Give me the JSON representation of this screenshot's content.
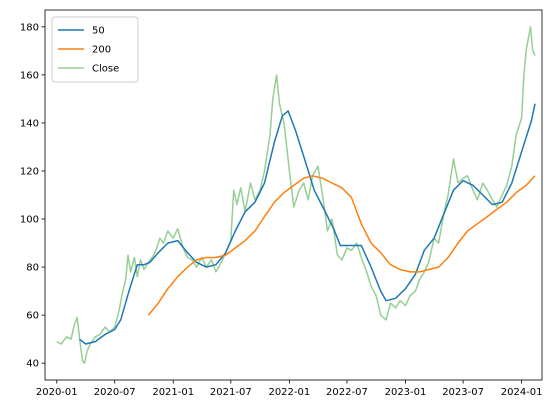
{
  "chart_data": {
    "type": "line",
    "xlim": [
      "2019-11-25",
      "2024-03-05"
    ],
    "ylim": [
      33,
      187
    ],
    "x_ticks": [
      {
        "date": "2020-01-01",
        "label": "2020-01"
      },
      {
        "date": "2020-07-01",
        "label": "2020-07"
      },
      {
        "date": "2021-01-01",
        "label": "2021-01"
      },
      {
        "date": "2021-07-01",
        "label": "2021-07"
      },
      {
        "date": "2022-01-01",
        "label": "2022-01"
      },
      {
        "date": "2022-07-01",
        "label": "2022-07"
      },
      {
        "date": "2023-01-01",
        "label": "2023-01"
      },
      {
        "date": "2023-07-01",
        "label": "2023-07"
      },
      {
        "date": "2024-01-01",
        "label": "2024-01"
      }
    ],
    "y_ticks": [
      40,
      60,
      80,
      100,
      120,
      140,
      160,
      180
    ],
    "legend": {
      "position": "top-left"
    },
    "grid": false,
    "series": [
      {
        "name": "Close",
        "color": "#2ca02c",
        "opacity": 0.5,
        "points": [
          [
            "2020-01-01",
            49
          ],
          [
            "2020-01-15",
            48
          ],
          [
            "2020-02-01",
            51
          ],
          [
            "2020-02-15",
            50
          ],
          [
            "2020-02-25",
            56
          ],
          [
            "2020-03-05",
            59
          ],
          [
            "2020-03-15",
            48
          ],
          [
            "2020-03-22",
            41
          ],
          [
            "2020-03-28",
            40
          ],
          [
            "2020-04-05",
            45
          ],
          [
            "2020-04-15",
            48
          ],
          [
            "2020-05-01",
            51
          ],
          [
            "2020-05-15",
            52
          ],
          [
            "2020-06-01",
            55
          ],
          [
            "2020-06-15",
            53
          ],
          [
            "2020-07-01",
            55
          ],
          [
            "2020-07-15",
            62
          ],
          [
            "2020-07-25",
            69
          ],
          [
            "2020-08-05",
            75
          ],
          [
            "2020-08-12",
            85
          ],
          [
            "2020-08-20",
            78
          ],
          [
            "2020-09-01",
            84
          ],
          [
            "2020-09-10",
            76
          ],
          [
            "2020-09-20",
            83
          ],
          [
            "2020-10-01",
            79
          ],
          [
            "2020-10-15",
            82
          ],
          [
            "2020-11-01",
            85
          ],
          [
            "2020-11-10",
            88
          ],
          [
            "2020-11-20",
            92
          ],
          [
            "2020-12-01",
            90
          ],
          [
            "2020-12-15",
            95
          ],
          [
            "2021-01-01",
            92
          ],
          [
            "2021-01-15",
            96
          ],
          [
            "2021-02-01",
            88
          ],
          [
            "2021-02-15",
            84
          ],
          [
            "2021-03-01",
            83
          ],
          [
            "2021-03-15",
            80
          ],
          [
            "2021-04-01",
            84
          ],
          [
            "2021-04-15",
            80
          ],
          [
            "2021-05-01",
            83
          ],
          [
            "2021-05-15",
            78
          ],
          [
            "2021-06-01",
            82
          ],
          [
            "2021-06-15",
            86
          ],
          [
            "2021-07-01",
            91
          ],
          [
            "2021-07-10",
            112
          ],
          [
            "2021-07-20",
            106
          ],
          [
            "2021-08-01",
            113
          ],
          [
            "2021-08-15",
            103
          ],
          [
            "2021-09-01",
            115
          ],
          [
            "2021-09-15",
            108
          ],
          [
            "2021-10-01",
            112
          ],
          [
            "2021-10-15",
            120
          ],
          [
            "2021-11-01",
            135
          ],
          [
            "2021-11-10",
            150
          ],
          [
            "2021-11-22",
            160
          ],
          [
            "2021-12-01",
            148
          ],
          [
            "2021-12-15",
            140
          ],
          [
            "2022-01-01",
            120
          ],
          [
            "2022-01-15",
            105
          ],
          [
            "2022-02-01",
            112
          ],
          [
            "2022-02-15",
            115
          ],
          [
            "2022-03-01",
            108
          ],
          [
            "2022-03-15",
            118
          ],
          [
            "2022-04-01",
            122
          ],
          [
            "2022-04-15",
            110
          ],
          [
            "2022-05-01",
            95
          ],
          [
            "2022-05-15",
            100
          ],
          [
            "2022-06-01",
            85
          ],
          [
            "2022-06-15",
            83
          ],
          [
            "2022-07-01",
            88
          ],
          [
            "2022-07-15",
            87
          ],
          [
            "2022-08-01",
            90
          ],
          [
            "2022-08-15",
            84
          ],
          [
            "2022-09-01",
            78
          ],
          [
            "2022-09-15",
            72
          ],
          [
            "2022-10-01",
            68
          ],
          [
            "2022-10-15",
            60
          ],
          [
            "2022-11-01",
            58
          ],
          [
            "2022-11-15",
            65
          ],
          [
            "2022-12-01",
            63
          ],
          [
            "2022-12-15",
            66
          ],
          [
            "2023-01-01",
            64
          ],
          [
            "2023-01-15",
            68
          ],
          [
            "2023-02-01",
            70
          ],
          [
            "2023-02-15",
            75
          ],
          [
            "2023-03-01",
            78
          ],
          [
            "2023-03-15",
            82
          ],
          [
            "2023-04-01",
            92
          ],
          [
            "2023-04-15",
            90
          ],
          [
            "2023-05-01",
            102
          ],
          [
            "2023-05-15",
            110
          ],
          [
            "2023-06-01",
            125
          ],
          [
            "2023-06-15",
            115
          ],
          [
            "2023-07-01",
            117
          ],
          [
            "2023-07-15",
            118
          ],
          [
            "2023-08-01",
            112
          ],
          [
            "2023-08-15",
            108
          ],
          [
            "2023-09-01",
            115
          ],
          [
            "2023-09-15",
            112
          ],
          [
            "2023-10-01",
            108
          ],
          [
            "2023-10-15",
            105
          ],
          [
            "2023-11-01",
            110
          ],
          [
            "2023-11-15",
            114
          ],
          [
            "2023-12-01",
            122
          ],
          [
            "2023-12-15",
            135
          ],
          [
            "2024-01-01",
            142
          ],
          [
            "2024-01-08",
            160
          ],
          [
            "2024-01-15",
            170
          ],
          [
            "2024-01-22",
            175
          ],
          [
            "2024-01-29",
            180
          ],
          [
            "2024-02-05",
            170
          ],
          [
            "2024-02-12",
            168
          ]
        ]
      },
      {
        "name": "50",
        "color": "#1f77b4",
        "opacity": 1,
        "points": [
          [
            "2020-03-12",
            50
          ],
          [
            "2020-04-01",
            48
          ],
          [
            "2020-05-01",
            49
          ],
          [
            "2020-06-01",
            52
          ],
          [
            "2020-07-01",
            54
          ],
          [
            "2020-07-20",
            58
          ],
          [
            "2020-08-15",
            70
          ],
          [
            "2020-09-10",
            81
          ],
          [
            "2020-10-01",
            81
          ],
          [
            "2020-10-20",
            82
          ],
          [
            "2020-11-15",
            86
          ],
          [
            "2020-12-15",
            90
          ],
          [
            "2021-01-15",
            91
          ],
          [
            "2021-02-15",
            86
          ],
          [
            "2021-03-15",
            82
          ],
          [
            "2021-04-15",
            80
          ],
          [
            "2021-05-15",
            81
          ],
          [
            "2021-06-15",
            86
          ],
          [
            "2021-07-15",
            95
          ],
          [
            "2021-08-15",
            103
          ],
          [
            "2021-09-15",
            107
          ],
          [
            "2021-10-15",
            115
          ],
          [
            "2021-11-15",
            132
          ],
          [
            "2021-12-10",
            143
          ],
          [
            "2021-12-28",
            145
          ],
          [
            "2022-01-20",
            137
          ],
          [
            "2022-02-20",
            124
          ],
          [
            "2022-03-20",
            112
          ],
          [
            "2022-04-20",
            104
          ],
          [
            "2022-05-20",
            96
          ],
          [
            "2022-06-10",
            89
          ],
          [
            "2022-07-15",
            89
          ],
          [
            "2022-08-15",
            89
          ],
          [
            "2022-09-15",
            80
          ],
          [
            "2022-10-15",
            70
          ],
          [
            "2022-11-01",
            66
          ],
          [
            "2022-12-01",
            67
          ],
          [
            "2023-01-01",
            71
          ],
          [
            "2023-02-01",
            77
          ],
          [
            "2023-03-01",
            87
          ],
          [
            "2023-04-01",
            92
          ],
          [
            "2023-05-01",
            102
          ],
          [
            "2023-06-01",
            112
          ],
          [
            "2023-07-01",
            116
          ],
          [
            "2023-08-01",
            114
          ],
          [
            "2023-09-01",
            110
          ],
          [
            "2023-10-01",
            106
          ],
          [
            "2023-11-01",
            107
          ],
          [
            "2023-12-01",
            115
          ],
          [
            "2024-01-01",
            128
          ],
          [
            "2024-02-01",
            141
          ],
          [
            "2024-02-12",
            148
          ]
        ]
      },
      {
        "name": "200",
        "color": "#ff7f0e",
        "opacity": 1,
        "points": [
          [
            "2020-10-15",
            60
          ],
          [
            "2020-11-15",
            65
          ],
          [
            "2020-12-15",
            71
          ],
          [
            "2021-01-15",
            76
          ],
          [
            "2021-02-15",
            80
          ],
          [
            "2021-03-15",
            83
          ],
          [
            "2021-04-15",
            84
          ],
          [
            "2021-05-15",
            84
          ],
          [
            "2021-06-15",
            85
          ],
          [
            "2021-07-15",
            88
          ],
          [
            "2021-08-15",
            91
          ],
          [
            "2021-09-15",
            95
          ],
          [
            "2021-10-15",
            101
          ],
          [
            "2021-11-15",
            107
          ],
          [
            "2021-12-15",
            111
          ],
          [
            "2022-01-15",
            114
          ],
          [
            "2022-02-15",
            117
          ],
          [
            "2022-03-15",
            118
          ],
          [
            "2022-04-15",
            117
          ],
          [
            "2022-05-15",
            115
          ],
          [
            "2022-06-15",
            113
          ],
          [
            "2022-07-15",
            109
          ],
          [
            "2022-08-15",
            98
          ],
          [
            "2022-09-15",
            90
          ],
          [
            "2022-10-15",
            86
          ],
          [
            "2022-11-15",
            81
          ],
          [
            "2022-12-15",
            79
          ],
          [
            "2023-01-15",
            78
          ],
          [
            "2023-02-15",
            78
          ],
          [
            "2023-03-15",
            79
          ],
          [
            "2023-04-15",
            80
          ],
          [
            "2023-05-15",
            84
          ],
          [
            "2023-06-15",
            90
          ],
          [
            "2023-07-15",
            95
          ],
          [
            "2023-08-15",
            98
          ],
          [
            "2023-09-15",
            101
          ],
          [
            "2023-10-15",
            104
          ],
          [
            "2023-11-15",
            107
          ],
          [
            "2023-12-15",
            111
          ],
          [
            "2024-01-15",
            114
          ],
          [
            "2024-02-12",
            118
          ]
        ]
      }
    ]
  }
}
